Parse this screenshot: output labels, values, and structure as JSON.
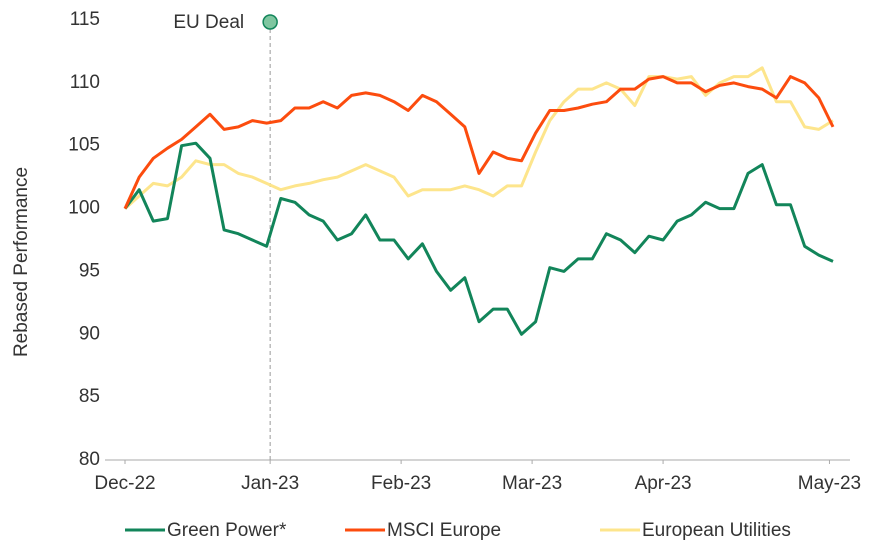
{
  "chart_data": {
    "type": "line",
    "ylabel": "Rebased Performance",
    "x": [
      0,
      2,
      4,
      6,
      8,
      10,
      12,
      14,
      16,
      18,
      20,
      22,
      24,
      26,
      28,
      30,
      32,
      34,
      36,
      38,
      40,
      42,
      44,
      46,
      48,
      50,
      52,
      54,
      56,
      58,
      60,
      62,
      64,
      66,
      68,
      70,
      72,
      74,
      76,
      78,
      80,
      82,
      84,
      86,
      88,
      90,
      92,
      94,
      96,
      98,
      100
    ],
    "xlim": [
      0,
      100
    ],
    "xticks": [
      {
        "value": 0,
        "label": "Dec-22"
      },
      {
        "value": 20.5,
        "label": "Jan-23"
      },
      {
        "value": 39,
        "label": "Feb-23"
      },
      {
        "value": 57.5,
        "label": "Mar-23"
      },
      {
        "value": 76,
        "label": "Apr-23"
      },
      {
        "value": 99.5,
        "label": "May-23"
      }
    ],
    "ylim": [
      80,
      115
    ],
    "yticks": [
      80,
      85,
      90,
      95,
      100,
      105,
      110,
      115
    ],
    "grid": false,
    "legend": "bottom",
    "annotations": [
      {
        "text": "EU Deal",
        "x": 20.5
      }
    ],
    "series": [
      {
        "name": "Green Power*",
        "color": "#12855a",
        "values": [
          100,
          101.5,
          99,
          99.2,
          105,
          105.2,
          104,
          98.3,
          98,
          97.5,
          97,
          100.8,
          100.5,
          99.5,
          99,
          97.5,
          98,
          99.5,
          97.5,
          97.5,
          96,
          97.2,
          95,
          93.5,
          94.5,
          91,
          92,
          92,
          90,
          91,
          95.3,
          95,
          96,
          96,
          98,
          97.5,
          96.5,
          97.8,
          97.5,
          99,
          99.5,
          100.5,
          100,
          100,
          102.8,
          103.5,
          100.3,
          100.3,
          97,
          96.3,
          95.8
        ]
      },
      {
        "name": "MSCI Europe",
        "color": "#fc4c0e",
        "values": [
          100,
          102.5,
          104,
          104.8,
          105.5,
          106.5,
          107.5,
          106.3,
          106.5,
          107,
          106.8,
          107,
          108,
          108,
          108.5,
          108,
          109,
          109.2,
          109,
          108.5,
          107.8,
          109,
          108.5,
          107.5,
          106.5,
          102.8,
          104.5,
          104,
          103.8,
          106,
          107.8,
          107.8,
          108,
          108.3,
          108.5,
          109.5,
          109.5,
          110.3,
          110.5,
          110,
          110,
          109.3,
          109.8,
          110,
          109.7,
          109.5,
          108.8,
          110.5,
          110,
          108.8,
          106.5
        ]
      },
      {
        "name": "European Utilities",
        "color": "#fde58c",
        "values": [
          100,
          101,
          102,
          101.8,
          102.5,
          103.8,
          103.5,
          103.5,
          102.8,
          102.5,
          102,
          101.5,
          101.8,
          102,
          102.3,
          102.5,
          103,
          103.5,
          103,
          102.5,
          101,
          101.5,
          101.5,
          101.5,
          101.8,
          101.5,
          101,
          101.8,
          101.8,
          104.5,
          107,
          108.5,
          109.5,
          109.5,
          110,
          109.5,
          108.2,
          110.5,
          110.5,
          110.3,
          110.5,
          109,
          110,
          110.5,
          110.5,
          111.2,
          108.5,
          108.5,
          106.5,
          106.3,
          107
        ]
      }
    ]
  }
}
